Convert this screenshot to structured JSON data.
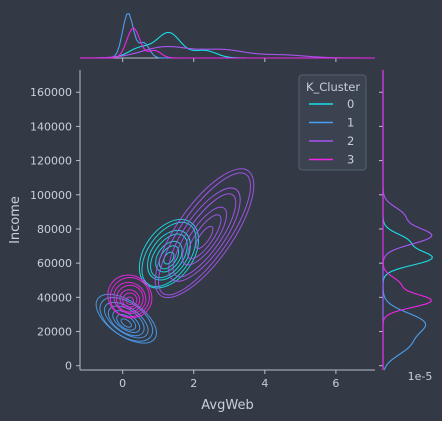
{
  "chart_data": {
    "type": "kde-jointplot",
    "xlabel": "AvgWeb",
    "ylabel": "Income",
    "xlim": [
      -1.2,
      7.1
    ],
    "ylim": [
      -2500,
      173000
    ],
    "x_ticks": [
      0,
      2,
      4,
      6
    ],
    "y_ticks": [
      0,
      20000,
      40000,
      60000,
      80000,
      100000,
      120000,
      140000,
      160000
    ],
    "y_tick_labels": [
      "0",
      "20000",
      "40000",
      "60000",
      "80000",
      "100000",
      "120000",
      "140000",
      "160000"
    ],
    "marginal_y_offset_label": "1e-5",
    "legend": {
      "title": "K_Cluster",
      "placement": "top-right",
      "entries": [
        "0",
        "1",
        "2",
        "3"
      ]
    },
    "grid": false,
    "series": [
      {
        "name": "0",
        "color": "#19e0ea",
        "center": [
          1.3,
          63000
        ],
        "spread": [
          0.55,
          7000
        ],
        "marginal_x": [
          [
            0.5,
            2
          ],
          [
            1.3,
            5
          ],
          [
            2.3,
            1.5
          ]
        ],
        "marginal_y": [
          [
            63000,
            6
          ],
          [
            73000,
            3
          ]
        ]
      },
      {
        "name": "1",
        "color": "#4b9ff0",
        "center": [
          0.1,
          25000
        ],
        "spread": [
          0.25,
          10000
        ],
        "marginal_x": [
          [
            0.15,
            9
          ],
          [
            0.6,
            3
          ]
        ],
        "marginal_y": [
          [
            25000,
            5
          ],
          [
            12000,
            3
          ]
        ]
      },
      {
        "name": "2",
        "color": "#a955f2",
        "center": [
          2.3,
          75000
        ],
        "spread": [
          1.1,
          8000
        ],
        "marginal_x": [
          [
            1.2,
            2.2
          ],
          [
            2.8,
            1.6
          ],
          [
            4.5,
            0.6
          ]
        ],
        "marginal_y": [
          [
            76000,
            6
          ],
          [
            88000,
            2.5
          ]
        ]
      },
      {
        "name": "3",
        "color": "#ef26e8",
        "center": [
          0.2,
          38000
        ],
        "spread": [
          0.3,
          6500
        ],
        "marginal_x": [
          [
            0.3,
            6
          ],
          [
            0.9,
            1.5
          ]
        ],
        "marginal_y": [
          [
            38000,
            6
          ],
          [
            48000,
            2
          ]
        ]
      }
    ]
  }
}
